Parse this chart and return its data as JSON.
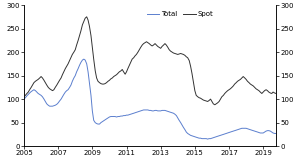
{
  "title": "",
  "xlim": [
    2005.0,
    2019.75
  ],
  "ylim": [
    0,
    300
  ],
  "yticks": [
    0,
    50,
    100,
    150,
    200,
    250,
    300
  ],
  "xticks": [
    2005,
    2007,
    2009,
    2011,
    2013,
    2015,
    2017,
    2019
  ],
  "legend_labels": [
    "Total",
    "Spot"
  ],
  "line_colors": [
    "#5b7fce",
    "#333333"
  ],
  "background_color": "#ffffff",
  "spot_data": [
    [
      2005.0,
      105
    ],
    [
      2005.08,
      108
    ],
    [
      2005.17,
      112
    ],
    [
      2005.25,
      115
    ],
    [
      2005.33,
      120
    ],
    [
      2005.42,
      125
    ],
    [
      2005.5,
      130
    ],
    [
      2005.58,
      135
    ],
    [
      2005.67,
      138
    ],
    [
      2005.75,
      140
    ],
    [
      2005.83,
      142
    ],
    [
      2005.92,
      145
    ],
    [
      2006.0,
      148
    ],
    [
      2006.08,
      145
    ],
    [
      2006.17,
      140
    ],
    [
      2006.25,
      135
    ],
    [
      2006.33,
      130
    ],
    [
      2006.42,
      125
    ],
    [
      2006.5,
      122
    ],
    [
      2006.58,
      120
    ],
    [
      2006.67,
      118
    ],
    [
      2006.75,
      120
    ],
    [
      2006.83,
      125
    ],
    [
      2006.92,
      130
    ],
    [
      2007.0,
      135
    ],
    [
      2007.08,
      140
    ],
    [
      2007.17,
      145
    ],
    [
      2007.25,
      152
    ],
    [
      2007.33,
      158
    ],
    [
      2007.42,
      165
    ],
    [
      2007.5,
      170
    ],
    [
      2007.58,
      175
    ],
    [
      2007.67,
      182
    ],
    [
      2007.75,
      188
    ],
    [
      2007.83,
      195
    ],
    [
      2007.92,
      200
    ],
    [
      2008.0,
      205
    ],
    [
      2008.08,
      215
    ],
    [
      2008.17,
      225
    ],
    [
      2008.25,
      235
    ],
    [
      2008.33,
      245
    ],
    [
      2008.42,
      258
    ],
    [
      2008.5,
      265
    ],
    [
      2008.58,
      272
    ],
    [
      2008.67,
      275
    ],
    [
      2008.75,
      268
    ],
    [
      2008.83,
      255
    ],
    [
      2008.92,
      235
    ],
    [
      2009.0,
      210
    ],
    [
      2009.08,
      185
    ],
    [
      2009.17,
      160
    ],
    [
      2009.25,
      145
    ],
    [
      2009.33,
      138
    ],
    [
      2009.42,
      135
    ],
    [
      2009.5,
      133
    ],
    [
      2009.58,
      132
    ],
    [
      2009.67,
      132
    ],
    [
      2009.75,
      133
    ],
    [
      2009.83,
      135
    ],
    [
      2009.92,
      138
    ],
    [
      2010.0,
      140
    ],
    [
      2010.08,
      143
    ],
    [
      2010.17,
      145
    ],
    [
      2010.25,
      148
    ],
    [
      2010.33,
      150
    ],
    [
      2010.42,
      152
    ],
    [
      2010.5,
      155
    ],
    [
      2010.58,
      158
    ],
    [
      2010.67,
      160
    ],
    [
      2010.75,
      163
    ],
    [
      2010.83,
      158
    ],
    [
      2010.92,
      153
    ],
    [
      2011.0,
      158
    ],
    [
      2011.08,
      165
    ],
    [
      2011.17,
      172
    ],
    [
      2011.25,
      178
    ],
    [
      2011.33,
      185
    ],
    [
      2011.42,
      188
    ],
    [
      2011.5,
      192
    ],
    [
      2011.58,
      195
    ],
    [
      2011.67,
      200
    ],
    [
      2011.75,
      205
    ],
    [
      2011.83,
      210
    ],
    [
      2011.92,
      215
    ],
    [
      2012.0,
      218
    ],
    [
      2012.08,
      220
    ],
    [
      2012.17,
      222
    ],
    [
      2012.25,
      220
    ],
    [
      2012.33,
      218
    ],
    [
      2012.42,
      215
    ],
    [
      2012.5,
      213
    ],
    [
      2012.58,
      215
    ],
    [
      2012.67,
      218
    ],
    [
      2012.75,
      215
    ],
    [
      2012.83,
      212
    ],
    [
      2012.92,
      210
    ],
    [
      2013.0,
      208
    ],
    [
      2013.08,
      212
    ],
    [
      2013.17,
      215
    ],
    [
      2013.25,
      218
    ],
    [
      2013.33,
      215
    ],
    [
      2013.42,
      210
    ],
    [
      2013.5,
      205
    ],
    [
      2013.58,
      202
    ],
    [
      2013.67,
      200
    ],
    [
      2013.75,
      198
    ],
    [
      2013.83,
      197
    ],
    [
      2013.92,
      196
    ],
    [
      2014.0,
      195
    ],
    [
      2014.08,
      196
    ],
    [
      2014.17,
      197
    ],
    [
      2014.25,
      196
    ],
    [
      2014.33,
      195
    ],
    [
      2014.42,
      193
    ],
    [
      2014.5,
      190
    ],
    [
      2014.58,
      188
    ],
    [
      2014.67,
      182
    ],
    [
      2014.75,
      170
    ],
    [
      2014.83,
      155
    ],
    [
      2014.92,
      135
    ],
    [
      2015.0,
      118
    ],
    [
      2015.08,
      108
    ],
    [
      2015.17,
      105
    ],
    [
      2015.25,
      103
    ],
    [
      2015.33,
      102
    ],
    [
      2015.42,
      100
    ],
    [
      2015.5,
      98
    ],
    [
      2015.58,
      97
    ],
    [
      2015.67,
      96
    ],
    [
      2015.75,
      95
    ],
    [
      2015.83,
      97
    ],
    [
      2015.92,
      100
    ],
    [
      2016.0,
      95
    ],
    [
      2016.08,
      90
    ],
    [
      2016.17,
      88
    ],
    [
      2016.25,
      90
    ],
    [
      2016.33,
      92
    ],
    [
      2016.42,
      95
    ],
    [
      2016.5,
      100
    ],
    [
      2016.58,
      105
    ],
    [
      2016.67,
      108
    ],
    [
      2016.75,
      112
    ],
    [
      2016.83,
      115
    ],
    [
      2016.92,
      118
    ],
    [
      2017.0,
      120
    ],
    [
      2017.08,
      122
    ],
    [
      2017.17,
      125
    ],
    [
      2017.25,
      128
    ],
    [
      2017.33,
      132
    ],
    [
      2017.42,
      135
    ],
    [
      2017.5,
      138
    ],
    [
      2017.58,
      140
    ],
    [
      2017.67,
      142
    ],
    [
      2017.75,
      145
    ],
    [
      2017.83,
      148
    ],
    [
      2017.92,
      145
    ],
    [
      2018.0,
      142
    ],
    [
      2018.08,
      138
    ],
    [
      2018.17,
      135
    ],
    [
      2018.25,
      132
    ],
    [
      2018.33,
      130
    ],
    [
      2018.42,
      128
    ],
    [
      2018.5,
      125
    ],
    [
      2018.58,
      122
    ],
    [
      2018.67,
      120
    ],
    [
      2018.75,
      118
    ],
    [
      2018.83,
      115
    ],
    [
      2018.92,
      112
    ],
    [
      2019.0,
      115
    ],
    [
      2019.08,
      118
    ],
    [
      2019.17,
      120
    ],
    [
      2019.25,
      118
    ],
    [
      2019.33,
      115
    ],
    [
      2019.42,
      113
    ],
    [
      2019.5,
      112
    ],
    [
      2019.58,
      115
    ],
    [
      2019.67,
      113
    ],
    [
      2019.75,
      112
    ]
  ],
  "total_data": [
    [
      2005.0,
      100
    ],
    [
      2005.08,
      103
    ],
    [
      2005.17,
      107
    ],
    [
      2005.25,
      110
    ],
    [
      2005.33,
      113
    ],
    [
      2005.42,
      116
    ],
    [
      2005.5,
      118
    ],
    [
      2005.58,
      120
    ],
    [
      2005.67,
      118
    ],
    [
      2005.75,
      115
    ],
    [
      2005.83,
      112
    ],
    [
      2005.92,
      110
    ],
    [
      2006.0,
      108
    ],
    [
      2006.08,
      105
    ],
    [
      2006.17,
      100
    ],
    [
      2006.25,
      95
    ],
    [
      2006.33,
      90
    ],
    [
      2006.42,
      87
    ],
    [
      2006.5,
      85
    ],
    [
      2006.58,
      85
    ],
    [
      2006.67,
      85
    ],
    [
      2006.75,
      86
    ],
    [
      2006.83,
      87
    ],
    [
      2006.92,
      89
    ],
    [
      2007.0,
      92
    ],
    [
      2007.08,
      96
    ],
    [
      2007.17,
      100
    ],
    [
      2007.25,
      105
    ],
    [
      2007.33,
      110
    ],
    [
      2007.42,
      115
    ],
    [
      2007.5,
      118
    ],
    [
      2007.58,
      120
    ],
    [
      2007.67,
      125
    ],
    [
      2007.75,
      130
    ],
    [
      2007.83,
      138
    ],
    [
      2007.92,
      145
    ],
    [
      2008.0,
      150
    ],
    [
      2008.08,
      158
    ],
    [
      2008.17,
      165
    ],
    [
      2008.25,
      172
    ],
    [
      2008.33,
      178
    ],
    [
      2008.42,
      183
    ],
    [
      2008.5,
      185
    ],
    [
      2008.58,
      183
    ],
    [
      2008.67,
      175
    ],
    [
      2008.75,
      158
    ],
    [
      2008.83,
      135
    ],
    [
      2008.92,
      108
    ],
    [
      2009.0,
      75
    ],
    [
      2009.08,
      55
    ],
    [
      2009.17,
      50
    ],
    [
      2009.25,
      48
    ],
    [
      2009.33,
      47
    ],
    [
      2009.42,
      47
    ],
    [
      2009.5,
      50
    ],
    [
      2009.58,
      52
    ],
    [
      2009.67,
      54
    ],
    [
      2009.75,
      56
    ],
    [
      2009.83,
      58
    ],
    [
      2009.92,
      60
    ],
    [
      2010.0,
      62
    ],
    [
      2010.08,
      63
    ],
    [
      2010.17,
      63
    ],
    [
      2010.25,
      63
    ],
    [
      2010.33,
      63
    ],
    [
      2010.42,
      62
    ],
    [
      2010.5,
      63
    ],
    [
      2010.58,
      63
    ],
    [
      2010.67,
      64
    ],
    [
      2010.75,
      64
    ],
    [
      2010.83,
      65
    ],
    [
      2010.92,
      65
    ],
    [
      2011.0,
      66
    ],
    [
      2011.08,
      66
    ],
    [
      2011.17,
      67
    ],
    [
      2011.25,
      68
    ],
    [
      2011.33,
      69
    ],
    [
      2011.42,
      70
    ],
    [
      2011.5,
      71
    ],
    [
      2011.58,
      72
    ],
    [
      2011.67,
      73
    ],
    [
      2011.75,
      74
    ],
    [
      2011.83,
      75
    ],
    [
      2011.92,
      76
    ],
    [
      2012.0,
      77
    ],
    [
      2012.08,
      77
    ],
    [
      2012.17,
      77
    ],
    [
      2012.25,
      77
    ],
    [
      2012.33,
      76
    ],
    [
      2012.42,
      76
    ],
    [
      2012.5,
      75
    ],
    [
      2012.58,
      75
    ],
    [
      2012.67,
      76
    ],
    [
      2012.75,
      76
    ],
    [
      2012.83,
      75
    ],
    [
      2012.92,
      75
    ],
    [
      2013.0,
      75
    ],
    [
      2013.08,
      76
    ],
    [
      2013.17,
      76
    ],
    [
      2013.25,
      76
    ],
    [
      2013.33,
      75
    ],
    [
      2013.42,
      74
    ],
    [
      2013.5,
      73
    ],
    [
      2013.58,
      72
    ],
    [
      2013.67,
      71
    ],
    [
      2013.75,
      70
    ],
    [
      2013.83,
      68
    ],
    [
      2013.92,
      65
    ],
    [
      2014.0,
      60
    ],
    [
      2014.08,
      55
    ],
    [
      2014.17,
      50
    ],
    [
      2014.25,
      45
    ],
    [
      2014.33,
      40
    ],
    [
      2014.42,
      35
    ],
    [
      2014.5,
      30
    ],
    [
      2014.58,
      27
    ],
    [
      2014.67,
      25
    ],
    [
      2014.75,
      23
    ],
    [
      2014.83,
      22
    ],
    [
      2014.92,
      21
    ],
    [
      2015.0,
      20
    ],
    [
      2015.08,
      19
    ],
    [
      2015.17,
      18
    ],
    [
      2015.25,
      17
    ],
    [
      2015.33,
      17
    ],
    [
      2015.42,
      16
    ],
    [
      2015.5,
      16
    ],
    [
      2015.58,
      16
    ],
    [
      2015.67,
      16
    ],
    [
      2015.75,
      15
    ],
    [
      2015.83,
      16
    ],
    [
      2015.92,
      16
    ],
    [
      2016.0,
      17
    ],
    [
      2016.08,
      18
    ],
    [
      2016.17,
      19
    ],
    [
      2016.25,
      20
    ],
    [
      2016.33,
      21
    ],
    [
      2016.42,
      22
    ],
    [
      2016.5,
      23
    ],
    [
      2016.58,
      24
    ],
    [
      2016.67,
      25
    ],
    [
      2016.75,
      26
    ],
    [
      2016.83,
      27
    ],
    [
      2016.92,
      28
    ],
    [
      2017.0,
      29
    ],
    [
      2017.08,
      30
    ],
    [
      2017.17,
      31
    ],
    [
      2017.25,
      32
    ],
    [
      2017.33,
      33
    ],
    [
      2017.42,
      34
    ],
    [
      2017.5,
      35
    ],
    [
      2017.58,
      36
    ],
    [
      2017.67,
      37
    ],
    [
      2017.75,
      38
    ],
    [
      2017.83,
      38
    ],
    [
      2017.92,
      38
    ],
    [
      2018.0,
      38
    ],
    [
      2018.08,
      37
    ],
    [
      2018.17,
      36
    ],
    [
      2018.25,
      35
    ],
    [
      2018.33,
      34
    ],
    [
      2018.42,
      33
    ],
    [
      2018.5,
      32
    ],
    [
      2018.58,
      31
    ],
    [
      2018.67,
      30
    ],
    [
      2018.75,
      29
    ],
    [
      2018.83,
      28
    ],
    [
      2018.92,
      28
    ],
    [
      2019.0,
      28
    ],
    [
      2019.08,
      30
    ],
    [
      2019.17,
      32
    ],
    [
      2019.25,
      33
    ],
    [
      2019.33,
      33
    ],
    [
      2019.42,
      32
    ],
    [
      2019.5,
      30
    ],
    [
      2019.58,
      28
    ],
    [
      2019.67,
      27
    ],
    [
      2019.75,
      27
    ]
  ]
}
